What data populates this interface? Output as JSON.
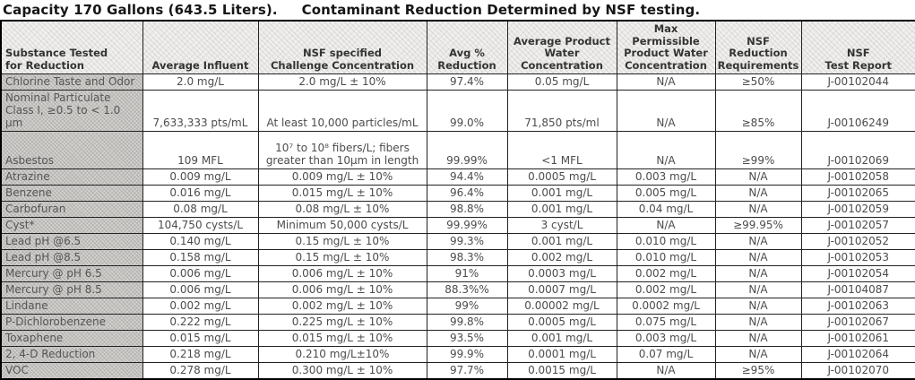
{
  "title": {
    "capacity": "Capacity 170 Gallons (643.5 Liters).",
    "subtitle": "Contaminant Reduction Determined by NSF testing."
  },
  "table": {
    "columns": [
      "Substance Tested\nfor Reduction",
      "Average Influent",
      "NSF specified\nChallenge Concentration",
      "Avg %\nReduction",
      "Average Product\nWater\nConcentration",
      "Max Permissible\nProduct Water\nConcentration",
      "NSF Reduction\nRequirements",
      "NSF\nTest Report"
    ],
    "rows": [
      [
        "Chlorine Taste and Odor",
        "2.0 mg/L",
        "2.0 mg/L ± 10%",
        "97.4%",
        "0.05 mg/L",
        "N/A",
        "≥50%",
        "J-00102044"
      ],
      [
        "Nominal Particulate\nClass I, ≥0.5 to < 1.0 μm",
        "7,633,333 pts/mL",
        "At least 10,000 particles/mL",
        "99.0%",
        "71,850 pts/ml",
        "N/A",
        "≥85%",
        "J-00106249"
      ],
      [
        "Asbestos",
        "109 MFL",
        "10⁷ to 10⁸ fibers/L; fibers\ngreater than 10μm in length",
        "99.99%",
        "<1 MFL",
        "N/A",
        "≥99%",
        "J-00102069"
      ],
      [
        "Atrazine",
        "0.009 mg/L",
        "0.009 mg/L ± 10%",
        "94.4%",
        "0.0005 mg/L",
        "0.003 mg/L",
        "N/A",
        "J-00102058"
      ],
      [
        "Benzene",
        "0.016 mg/L",
        "0.015 mg/L ± 10%",
        "96.4%",
        "0.001 mg/L",
        "0.005 mg/L",
        "N/A",
        "J-00102065"
      ],
      [
        "Carbofuran",
        "0.08 mg/L",
        "0.08 mg/L ± 10%",
        "98.8%",
        "0.001 mg/L",
        "0.04 mg/L",
        "N/A",
        "J-00102059"
      ],
      [
        "Cyst*",
        "104,750 cysts/L",
        "Minimum 50,000 cysts/L",
        "99.99%",
        "3 cyst/L",
        "N/A",
        "≥99.95%",
        "J-00102057"
      ],
      [
        "Lead pH @6.5",
        "0.140 mg/L",
        "0.15 mg/L ± 10%",
        "99.3%",
        "0.001 mg/L",
        "0.010 mg/L",
        "N/A",
        "J-00102052"
      ],
      [
        "Lead pH @8.5",
        "0.158 mg/L",
        "0.15 mg/L ± 10%",
        "98.3%",
        "0.002 mg/L",
        "0.010 mg/L",
        "N/A",
        "J-00102053"
      ],
      [
        "Mercury @ pH 6.5",
        "0.006 mg/L",
        "0.006 mg/L ± 10%",
        "91%",
        "0.0003 mg/L",
        "0.002 mg/L",
        "N/A",
        "J-00102054"
      ],
      [
        "Mercury @ pH 8.5",
        "0.006 mg/L",
        "0.006 mg/L ± 10%",
        "88.3%%",
        "0.0007 mg/L",
        "0.002 mg/L",
        "N/A",
        "J-00104087"
      ],
      [
        "Lindane",
        "0.002 mg/L",
        "0.002 mg/L ± 10%",
        "99%",
        "0.00002 mg/L",
        "0.0002 mg/L",
        "N/A",
        "J-00102063"
      ],
      [
        "P-Dichlorobenzene",
        "0.222 mg/L",
        "0.225 mg/L ± 10%",
        "99.8%",
        "0.0005 mg/L",
        "0.075 mg/L",
        "N/A",
        "J-00102067"
      ],
      [
        "Toxaphene",
        "0.015 mg/L",
        "0.015 mg/L ± 10%",
        "93.5%",
        "0.001 mg/L",
        "0.003 mg/L",
        "N/A",
        "J-00102061"
      ],
      [
        "2, 4-D Reduction",
        "0.218 mg/L",
        "0.210 mg/L±10%",
        "99.9%",
        "0.0001 mg/L",
        "0.07 mg/L",
        "N/A",
        "J-00102064"
      ],
      [
        "VOC",
        "0.278 mg/L",
        "0.300 mg/L ± 10%",
        "97.7%",
        "0.0015 mg/L",
        "N/A",
        "≥95%",
        "J-00102070"
      ]
    ]
  }
}
